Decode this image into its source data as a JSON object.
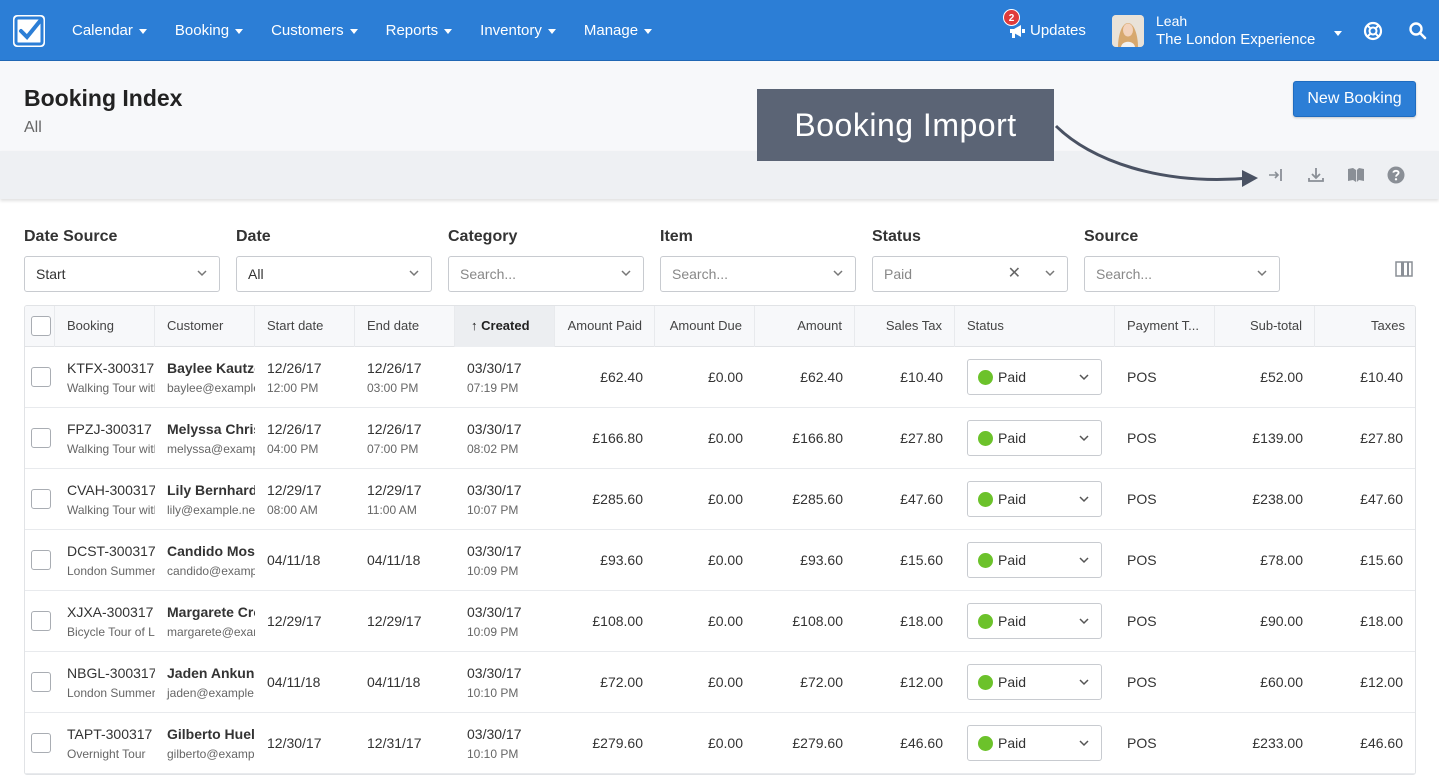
{
  "nav": {
    "menu": [
      {
        "label": "Calendar"
      },
      {
        "label": "Booking"
      },
      {
        "label": "Customers"
      },
      {
        "label": "Reports"
      },
      {
        "label": "Inventory"
      },
      {
        "label": "Manage"
      }
    ],
    "updates_label": "Updates",
    "updates_count": "2",
    "user_name": "Leah",
    "user_org": "The London Experience"
  },
  "header": {
    "title": "Booking Index",
    "subtitle": "All",
    "new_booking_label": "New Booking"
  },
  "annotation": {
    "callout_text": "Booking Import"
  },
  "toolbar_icons": [
    "import-icon",
    "download-icon",
    "book-icon",
    "help-circle-icon"
  ],
  "filters": [
    {
      "label": "Date Source",
      "value": "Start",
      "placeholder": ""
    },
    {
      "label": "Date",
      "value": "All",
      "placeholder": ""
    },
    {
      "label": "Category",
      "value": "",
      "placeholder": "Search..."
    },
    {
      "label": "Item",
      "value": "",
      "placeholder": "Search..."
    },
    {
      "label": "Status",
      "value": "",
      "placeholder": "Paid"
    },
    {
      "label": "Source",
      "value": "",
      "placeholder": "Search..."
    }
  ],
  "table": {
    "columns": [
      "Booking",
      "Customer",
      "Start date",
      "End date",
      "Created",
      "Amount Paid",
      "Amount Due",
      "Amount",
      "Sales Tax",
      "Status",
      "Payment T...",
      "Sub-total",
      "Taxes"
    ],
    "sorted_column": "Created",
    "rows": [
      {
        "booking": "KTFX-300317",
        "item": "Walking Tour with Guide",
        "customer": "Baylee Kautzer",
        "email": "baylee@example.net",
        "start_date": "12/26/17",
        "start_time": "12:00 PM",
        "end_date": "12/26/17",
        "end_time": "03:00 PM",
        "created_date": "03/30/17",
        "created_time": "07:19 PM",
        "amount_paid": "£62.40",
        "amount_due": "£0.00",
        "amount": "£62.40",
        "sales_tax": "£10.40",
        "status": "Paid",
        "payment_type": "POS",
        "subtotal": "£52.00",
        "taxes": "£10.40"
      },
      {
        "booking": "FPZJ-300317",
        "item": "Walking Tour with Guide",
        "customer": "Melyssa Christiansen",
        "email": "melyssa@example.net",
        "start_date": "12/26/17",
        "start_time": "04:00 PM",
        "end_date": "12/26/17",
        "end_time": "07:00 PM",
        "created_date": "03/30/17",
        "created_time": "08:02 PM",
        "amount_paid": "£166.80",
        "amount_due": "£0.00",
        "amount": "£166.80",
        "sales_tax": "£27.80",
        "status": "Paid",
        "payment_type": "POS",
        "subtotal": "£139.00",
        "taxes": "£27.80"
      },
      {
        "booking": "CVAH-300317",
        "item": "Walking Tour with Guide",
        "customer": "Lily Bernhard",
        "email": "lily@example.net",
        "start_date": "12/29/17",
        "start_time": "08:00 AM",
        "end_date": "12/29/17",
        "end_time": "11:00 AM",
        "created_date": "03/30/17",
        "created_time": "10:07 PM",
        "amount_paid": "£285.60",
        "amount_due": "£0.00",
        "amount": "£285.60",
        "sales_tax": "£47.60",
        "status": "Paid",
        "payment_type": "POS",
        "subtotal": "£238.00",
        "taxes": "£47.60"
      },
      {
        "booking": "DCST-300317",
        "item": "London Summer Tour",
        "customer": "Candido Mosciski",
        "email": "candido@example.net",
        "start_date": "04/11/18",
        "start_time": "",
        "end_date": "04/11/18",
        "end_time": "",
        "created_date": "03/30/17",
        "created_time": "10:09 PM",
        "amount_paid": "£93.60",
        "amount_due": "£0.00",
        "amount": "£93.60",
        "sales_tax": "£15.60",
        "status": "Paid",
        "payment_type": "POS",
        "subtotal": "£78.00",
        "taxes": "£15.60"
      },
      {
        "booking": "XJXA-300317",
        "item": "Bicycle Tour of London",
        "customer": "Margarete Cronin",
        "email": "margarete@example.net",
        "start_date": "12/29/17",
        "start_time": "",
        "end_date": "12/29/17",
        "end_time": "",
        "created_date": "03/30/17",
        "created_time": "10:09 PM",
        "amount_paid": "£108.00",
        "amount_due": "£0.00",
        "amount": "£108.00",
        "sales_tax": "£18.00",
        "status": "Paid",
        "payment_type": "POS",
        "subtotal": "£90.00",
        "taxes": "£18.00"
      },
      {
        "booking": "NBGL-300317",
        "item": "London Summer Tour",
        "customer": "Jaden Ankunding",
        "email": "jaden@example.net",
        "start_date": "04/11/18",
        "start_time": "",
        "end_date": "04/11/18",
        "end_time": "",
        "created_date": "03/30/17",
        "created_time": "10:10 PM",
        "amount_paid": "£72.00",
        "amount_due": "£0.00",
        "amount": "£72.00",
        "sales_tax": "£12.00",
        "status": "Paid",
        "payment_type": "POS",
        "subtotal": "£60.00",
        "taxes": "£12.00"
      },
      {
        "booking": "TAPT-300317",
        "item": "Overnight Tour",
        "customer": "Gilberto Huel",
        "email": "gilberto@example.net",
        "start_date": "12/30/17",
        "start_time": "",
        "end_date": "12/31/17",
        "end_time": "",
        "created_date": "03/30/17",
        "created_time": "10:10 PM",
        "amount_paid": "£279.60",
        "amount_due": "£0.00",
        "amount": "£279.60",
        "sales_tax": "£46.60",
        "status": "Paid",
        "payment_type": "POS",
        "subtotal": "£233.00",
        "taxes": "£46.60"
      }
    ]
  },
  "colors": {
    "nav_bg": "#2c7ed6",
    "status_paid": "#6cc22b",
    "callout_bg": "#5b6475",
    "badge": "#e03b3b"
  }
}
